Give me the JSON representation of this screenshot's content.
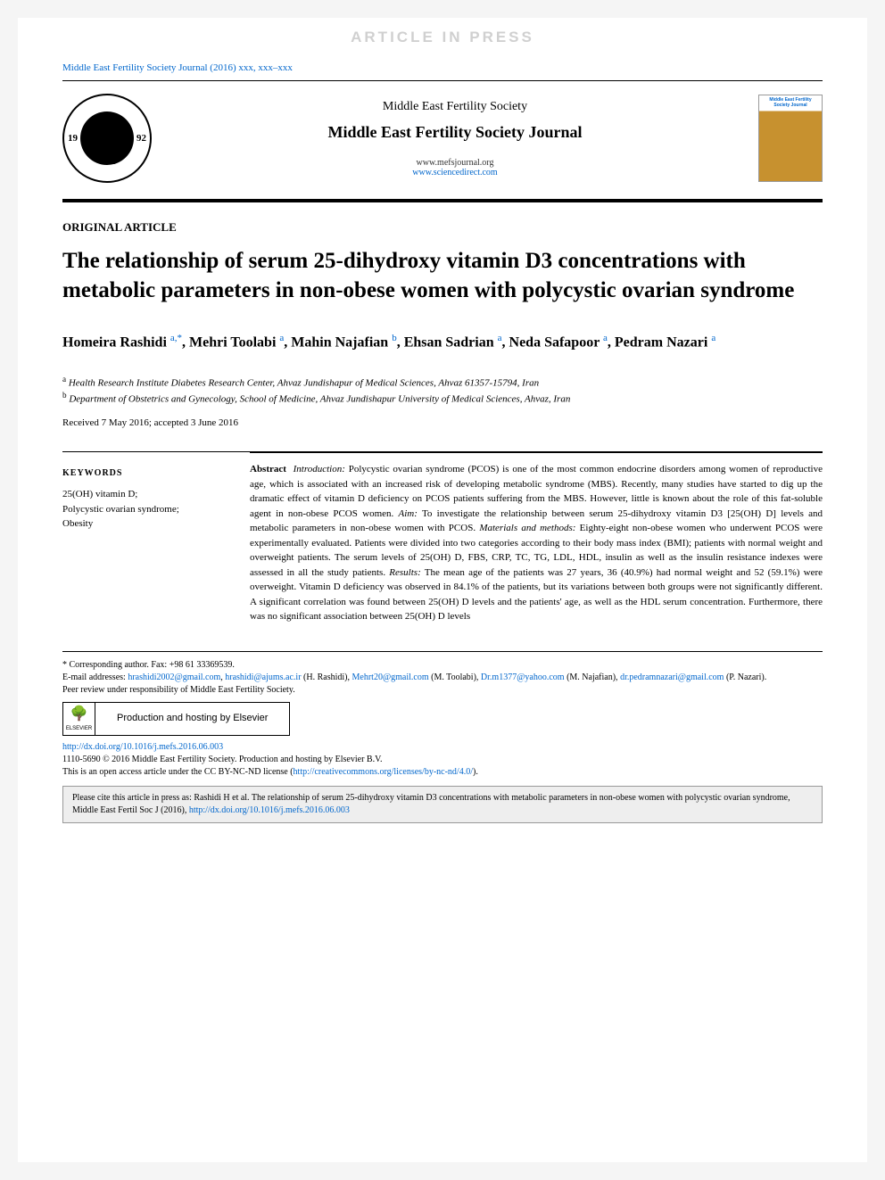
{
  "watermark": "ARTICLE IN PRESS",
  "journal_ref": "Middle East Fertility Society Journal (2016) xxx, xxx–xxx",
  "header": {
    "society": "Middle East Fertility Society",
    "journal": "Middle East Fertility Society Journal",
    "url1": "www.mefsjournal.org",
    "url2": "www.sciencedirect.com",
    "logo_year_left": "19",
    "logo_year_right": "92",
    "cover_label": "Middle East Fertility Society Journal"
  },
  "article_type": "ORIGINAL ARTICLE",
  "title": "The relationship of serum 25-dihydroxy vitamin D3 concentrations with metabolic parameters in non-obese women with polycystic ovarian syndrome",
  "authors_html": "Homeira Rashidi <sup>a,*</sup>, Mehri Toolabi <sup>a</sup>, Mahin Najafian <sup>b</sup>, Ehsan Sadrian <sup>a</sup>, Neda Safapoor <sup>a</sup>, Pedram Nazari <sup>a</sup>",
  "affiliations": {
    "a": "Health Research Institute Diabetes Research Center, Ahvaz Jundishapur of Medical Sciences, Ahvaz 61357-15794, Iran",
    "b": "Department of Obstetrics and Gynecology, School of Medicine, Ahvaz Jundishapur University of Medical Sciences, Ahvaz, Iran"
  },
  "dates": "Received 7 May 2016; accepted 3 June 2016",
  "keywords": {
    "heading": "KEYWORDS",
    "list": "25(OH) vitamin D;\nPolycystic ovarian syndrome;\nObesity"
  },
  "abstract": {
    "label": "Abstract",
    "intro_label": "Introduction:",
    "intro": "Polycystic ovarian syndrome (PCOS) is one of the most common endocrine disorders among women of reproductive age, which is associated with an increased risk of developing metabolic syndrome (MBS). Recently, many studies have started to dig up the dramatic effect of vitamin D deficiency on PCOS patients suffering from the MBS. However, little is known about the role of this fat-soluble agent in non-obese PCOS women.",
    "aim_label": "Aim:",
    "aim": "To investigate the relationship between serum 25-dihydroxy vitamin D3 [25(OH) D] levels and metabolic parameters in non-obese women with PCOS.",
    "methods_label": "Materials and methods:",
    "methods": "Eighty-eight non-obese women who underwent PCOS were experimentally evaluated. Patients were divided into two categories according to their body mass index (BMI); patients with normal weight and overweight patients. The serum levels of 25(OH) D, FBS, CRP, TC, TG, LDL, HDL, insulin as well as the insulin resistance indexes were assessed in all the study patients.",
    "results_label": "Results:",
    "results": "The mean age of the patients was 27 years, 36 (40.9%) had normal weight and 52 (59.1%) were overweight. Vitamin D deficiency was observed in 84.1% of the patients, but its variations between both groups were not significantly different. A significant correlation was found between 25(OH) D levels and the patients' age, as well as the HDL serum concentration. Furthermore, there was no significant association between 25(OH) D levels"
  },
  "footer": {
    "corresponding": "Corresponding author. Fax: +98 61 33369539.",
    "emails_label": "E-mail addresses:",
    "emails": [
      {
        "addr": "hrashidi2002@gmail.com",
        "who": ""
      },
      {
        "addr": "hrashidi@ajums.ac.ir",
        "who": "(H. Rashidi)"
      },
      {
        "addr": "Mehrt20@gmail.com",
        "who": "(M. Toolabi)"
      },
      {
        "addr": "Dr.m1377@yahoo.com",
        "who": "(M. Najafian)"
      },
      {
        "addr": "dr.pedramnazari@gmail.com",
        "who": "(P. Nazari)"
      }
    ],
    "peer": "Peer review under responsibility of Middle East Fertility Society.",
    "production": "Production and hosting by Elsevier",
    "elsevier": "ELSEVIER",
    "doi": "http://dx.doi.org/10.1016/j.mefs.2016.06.003",
    "copyright": "1110-5690 © 2016 Middle East Fertility Society. Production and hosting by Elsevier B.V.",
    "license_pre": "This is an open access article under the CC BY-NC-ND license (",
    "license_url": "http://creativecommons.org/licenses/by-nc-nd/4.0/",
    "license_post": ")."
  },
  "citation": {
    "text": "Please cite this article in press as: Rashidi H et al. The relationship of serum 25-dihydroxy vitamin D3 concentrations with metabolic parameters in non-obese women with polycystic ovarian syndrome, Middle East Fertil Soc J (2016), ",
    "url": "http://dx.doi.org/10.1016/j.mefs.2016.06.003"
  },
  "colors": {
    "link": "#0066cc",
    "watermark": "#d0d0d0",
    "cover_gold": "#c7912f",
    "cite_bg": "#eeeeee"
  }
}
